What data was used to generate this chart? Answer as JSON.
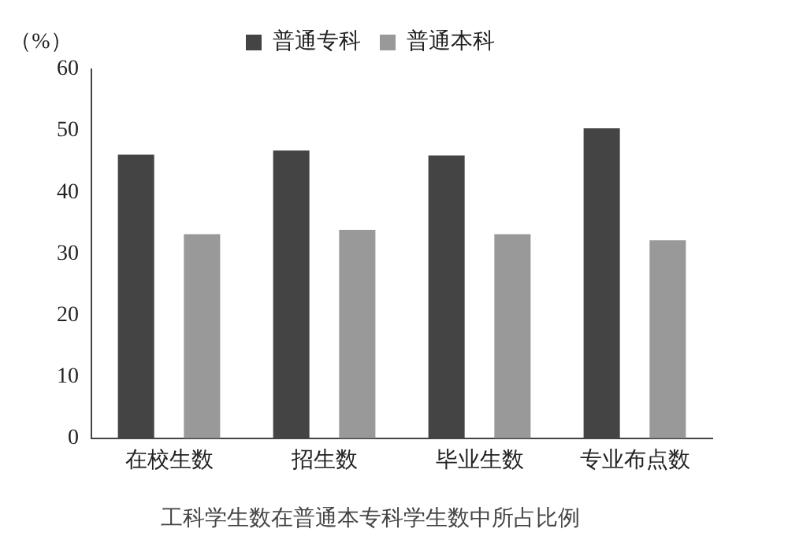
{
  "chart_data": {
    "type": "bar",
    "title": "工科学生数在普通本专科学生数中所占比例",
    "ylabel": "（%）",
    "categories": [
      "在校生数",
      "招生数",
      "毕业生数",
      "专业布点数"
    ],
    "series": [
      {
        "name": "普通专科",
        "color": "#444444",
        "values": [
          46.1,
          46.8,
          46.0,
          50.4
        ]
      },
      {
        "name": "普通本科",
        "color": "#999999",
        "values": [
          33.2,
          33.9,
          33.2,
          32.2
        ]
      }
    ],
    "ylim": [
      0,
      60
    ],
    "yticks": [
      0,
      10,
      20,
      30,
      40,
      50,
      60
    ],
    "grid": false,
    "legend": "top"
  }
}
